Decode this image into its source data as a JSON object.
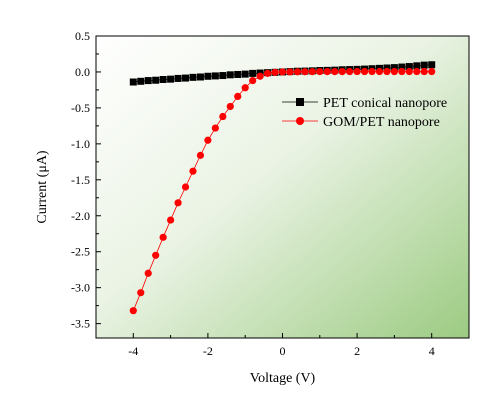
{
  "chart_data": {
    "type": "scatter",
    "xlabel": "Voltage (V)",
    "ylabel": "Current (μA)",
    "xlim": [
      -5,
      5
    ],
    "ylim": [
      -3.7,
      0.5
    ],
    "xticks": [
      -4,
      -2,
      0,
      2,
      4
    ],
    "xtick_labels": [
      "-4",
      "-2",
      "0",
      "2",
      "4"
    ],
    "yticks": [
      0.5,
      0.0,
      -0.5,
      -1.0,
      -1.5,
      -2.0,
      -2.5,
      -3.0,
      -3.5
    ],
    "ytick_labels": [
      "0.5",
      "0.0",
      "-0.5",
      "-1.0",
      "-1.5",
      "-2.0",
      "-2.5",
      "-3.0",
      "-3.5"
    ],
    "legend_position": "top-right",
    "background": "white-to-green gradient",
    "series": [
      {
        "name": "PET conical nanopore",
        "marker": "square",
        "color": "#000000",
        "x": [
          -4.0,
          -3.8,
          -3.6,
          -3.4,
          -3.2,
          -3.0,
          -2.8,
          -2.6,
          -2.4,
          -2.2,
          -2.0,
          -1.8,
          -1.6,
          -1.4,
          -1.2,
          -1.0,
          -0.8,
          -0.6,
          -0.4,
          -0.2,
          0.0,
          0.2,
          0.4,
          0.6,
          0.8,
          1.0,
          1.2,
          1.4,
          1.6,
          1.8,
          2.0,
          2.2,
          2.4,
          2.6,
          2.8,
          3.0,
          3.2,
          3.4,
          3.6,
          3.8,
          4.0
        ],
        "y": [
          -0.14,
          -0.13,
          -0.12,
          -0.115,
          -0.105,
          -0.1,
          -0.09,
          -0.085,
          -0.075,
          -0.07,
          -0.06,
          -0.055,
          -0.05,
          -0.04,
          -0.035,
          -0.03,
          -0.02,
          -0.015,
          -0.01,
          -0.005,
          0.0,
          0.005,
          0.01,
          0.012,
          0.015,
          0.02,
          0.022,
          0.025,
          0.03,
          0.033,
          0.036,
          0.04,
          0.045,
          0.05,
          0.055,
          0.06,
          0.068,
          0.075,
          0.085,
          0.095,
          0.1
        ]
      },
      {
        "name": "GOM/PET nanopore",
        "marker": "circle",
        "color": "#ff0000",
        "x": [
          -4.0,
          -3.8,
          -3.6,
          -3.4,
          -3.2,
          -3.0,
          -2.8,
          -2.6,
          -2.4,
          -2.2,
          -2.0,
          -1.8,
          -1.6,
          -1.4,
          -1.2,
          -1.0,
          -0.8,
          -0.6,
          -0.4,
          -0.2,
          0.0,
          0.2,
          0.4,
          0.6,
          0.8,
          1.0,
          1.2,
          1.4,
          1.6,
          1.8,
          2.0,
          2.2,
          2.4,
          2.6,
          2.8,
          3.0,
          3.2,
          3.4,
          3.6,
          3.8,
          4.0
        ],
        "y": [
          -3.32,
          -3.07,
          -2.8,
          -2.55,
          -2.3,
          -2.06,
          -1.82,
          -1.6,
          -1.38,
          -1.16,
          -0.95,
          -0.78,
          -0.62,
          -0.48,
          -0.34,
          -0.22,
          -0.12,
          -0.06,
          -0.02,
          -0.005,
          0.0,
          0.0,
          0.002,
          0.003,
          0.004,
          0.005,
          0.005,
          0.005,
          0.005,
          0.006,
          0.006,
          0.006,
          0.006,
          0.006,
          0.006,
          0.006,
          0.006,
          0.006,
          0.006,
          0.006,
          0.006
        ]
      }
    ]
  }
}
